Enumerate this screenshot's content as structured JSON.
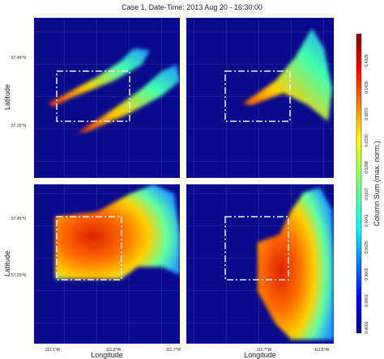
{
  "title": "Case 1, Date-Time: 2013 Aug 20 - 16:30:00",
  "y_axis": {
    "label": "Latitude",
    "ticks": [
      "57.45°N",
      "57.25°N"
    ]
  },
  "x_axis": {
    "label": "Longitude",
    "left_ticks": [
      "112.1°W",
      "111.9°W",
      "111.7°W"
    ],
    "right_ticks": [
      "111.7°W",
      "111.5°W"
    ]
  },
  "colorbar": {
    "label": "Column Sum (max. norm.)",
    "tick_labels": [
      "0.4329",
      "0.1439",
      "0.0873",
      "0.0330",
      "0.0288",
      "0.0107",
      "0.0041",
      "0.0025",
      "0.0009",
      "0.0003",
      "0.0001"
    ]
  }
}
